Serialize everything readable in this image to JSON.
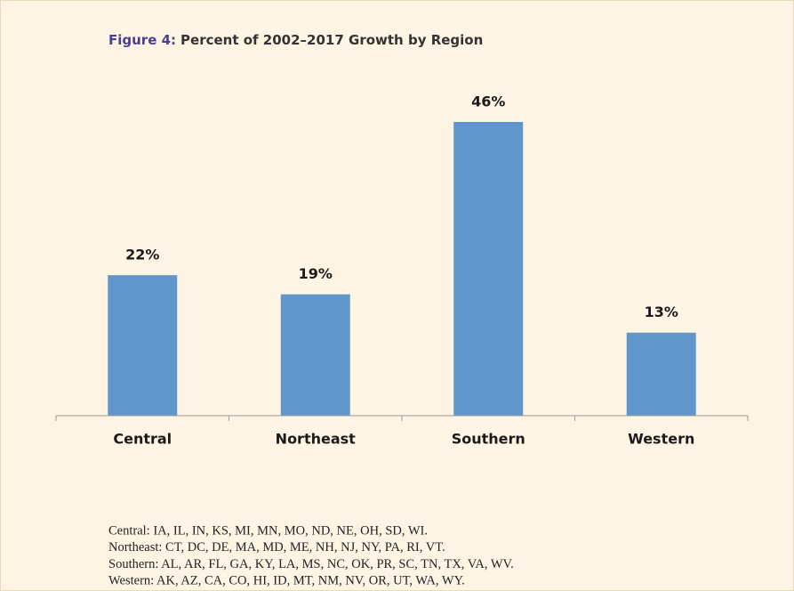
{
  "chart_data": {
    "type": "bar",
    "title_label": "Figure 4:",
    "title": "Percent of 2002–2017 Growth by Region",
    "categories": [
      "Central",
      "Northeast",
      "Southern",
      "Western"
    ],
    "values": [
      22,
      19,
      46,
      13
    ],
    "value_labels": [
      "22%",
      "19%",
      "46%",
      "13%"
    ],
    "color": "#6096c9",
    "notes": [
      "Central: IA, IL, IN, KS, MI, MN, MO, ND, NE, OH, SD, WI.",
      "Northeast: CT, DC, DE, MA, MD, ME, NH, NJ, NY, PA, RI, VT.",
      "Southern: AL, AR, FL, GA, KY, LA, MS, NC, OK, PR, SC, TN, TX, VA, WV.",
      "Western: AK, AZ, CA, CO, HI, ID, MT, NM, NV, OR, UT, WA, WY."
    ]
  }
}
